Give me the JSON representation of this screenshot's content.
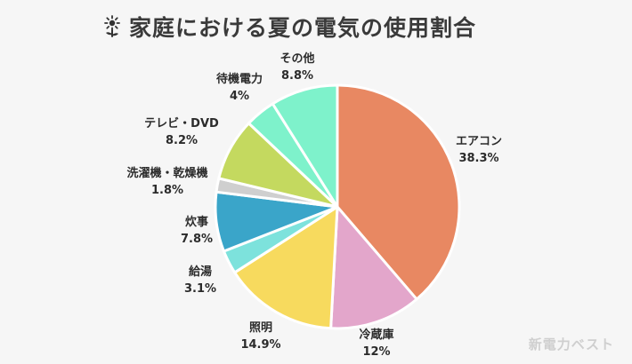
{
  "header": {
    "title": "家庭における夏の電気の使用割合",
    "icon": "sunflower-icon"
  },
  "watermark": "新電力ベスト",
  "chart_data": {
    "type": "pie",
    "title": "家庭における夏の電気の使用割合",
    "start_angle_deg": 0,
    "direction": "clockwise",
    "slices": [
      {
        "label": "エアコン",
        "value": 38.3,
        "value_text": "38.3%",
        "color": "#e88862"
      },
      {
        "label": "冷蔵庫",
        "value": 12,
        "value_text": "12%",
        "color": "#e3a6cb"
      },
      {
        "label": "照明",
        "value": 14.9,
        "value_text": "14.9%",
        "color": "#f7da5e"
      },
      {
        "label": "給湯",
        "value": 3.1,
        "value_text": "3.1%",
        "color": "#7de2dc"
      },
      {
        "label": "炊事",
        "value": 7.8,
        "value_text": "7.8%",
        "color": "#3aa5c9"
      },
      {
        "label": "洗濯機・乾燥機",
        "value": 1.8,
        "value_text": "1.8%",
        "color": "#cfcfcf"
      },
      {
        "label": "テレビ・DVD",
        "value": 8.2,
        "value_text": "8.2%",
        "color": "#c4d95f"
      },
      {
        "label": "待機電力",
        "value": 4,
        "value_text": "4%",
        "color": "#7ef2cb"
      },
      {
        "label": "その他",
        "value": 8.8,
        "value_text": "8.8%",
        "color": "#7ef2cb"
      }
    ]
  }
}
